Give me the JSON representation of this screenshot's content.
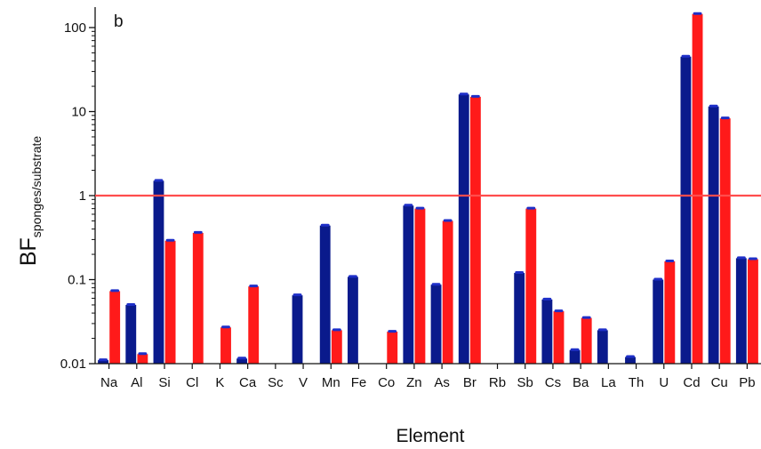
{
  "chart_data": {
    "type": "bar",
    "panel_label": "b",
    "xlabel": "Element",
    "ylabel_main": "BF",
    "ylabel_sub": "sponges/substrate",
    "y_scale": "log",
    "ylim": [
      0.01,
      160
    ],
    "y_ticks": [
      {
        "value": 100,
        "label": "100"
      },
      {
        "value": 10,
        "label": "10"
      },
      {
        "value": 1,
        "label": "1"
      },
      {
        "value": 0.1,
        "label": "0.1"
      },
      {
        "value": 0.01,
        "label": "0.01"
      }
    ],
    "reference_line": {
      "value": 1,
      "color": "#ff4d4d"
    },
    "categories": [
      "Na",
      "Al",
      "Si",
      "Cl",
      "K",
      "Ca",
      "Sc",
      "V",
      "Mn",
      "Fe",
      "Co",
      "Zn",
      "As",
      "Br",
      "Rb",
      "Sb",
      "Cs",
      "Ba",
      "La",
      "Th",
      "U",
      "Cd",
      "Cu",
      "Pb"
    ],
    "series": [
      {
        "color": "#0a1a8c",
        "values": [
          0.011,
          0.05,
          1.5,
          null,
          null,
          0.0115,
          null,
          0.065,
          0.44,
          0.108,
          null,
          0.76,
          0.087,
          16,
          null,
          0.12,
          0.058,
          0.0145,
          0.025,
          0.012,
          0.1,
          45,
          11.5,
          0.18
        ]
      },
      {
        "color": "#ff1a1a",
        "values": [
          0.073,
          0.013,
          0.29,
          0.36,
          0.027,
          0.083,
          null,
          null,
          0.025,
          null,
          0.024,
          0.7,
          0.5,
          15,
          null,
          0.7,
          0.042,
          0.035,
          null,
          null,
          0.165,
          145,
          8.3,
          0.175
        ]
      }
    ],
    "grid": false,
    "legend": "none"
  }
}
